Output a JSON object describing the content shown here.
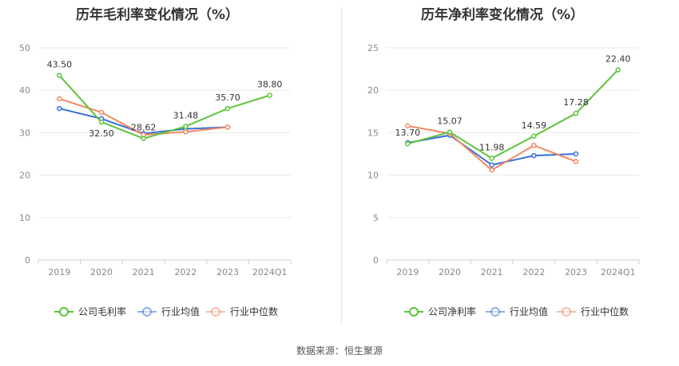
{
  "source_text": "数据来源：恒生聚源",
  "chart_data": [
    {
      "type": "line",
      "title": "历年毛利率变化情况（%）",
      "categories": [
        "2019",
        "2020",
        "2021",
        "2022",
        "2023",
        "2024Q1"
      ],
      "ylim": [
        0,
        50
      ],
      "yticks": [
        0,
        10,
        20,
        30,
        40,
        50
      ],
      "grid": true,
      "legend_position": "bottom",
      "series": [
        {
          "name": "公司毛利率",
          "color": "#5cc43c",
          "values": [
            43.5,
            32.5,
            28.62,
            31.48,
            35.7,
            38.8
          ],
          "labels": [
            "43.50",
            "32.50",
            "28.62",
            "31.48",
            "35.70",
            "38.80"
          ]
        },
        {
          "name": "行业均值",
          "color": "#3a6fd8",
          "values": [
            35.7,
            33.3,
            29.8,
            30.9,
            31.3,
            null
          ]
        },
        {
          "name": "行业中位数",
          "color": "#f08a64",
          "values": [
            38.0,
            34.8,
            29.5,
            30.2,
            31.3,
            null
          ]
        }
      ]
    },
    {
      "type": "line",
      "title": "历年净利率变化情况（%）",
      "categories": [
        "2019",
        "2020",
        "2021",
        "2022",
        "2023",
        "2024Q1"
      ],
      "ylim": [
        0,
        25
      ],
      "yticks": [
        0,
        5,
        10,
        15,
        20,
        25
      ],
      "grid": true,
      "legend_position": "bottom",
      "series": [
        {
          "name": "公司净利率",
          "color": "#5cc43c",
          "values": [
            13.7,
            15.07,
            11.98,
            14.59,
            17.28,
            22.4
          ],
          "labels": [
            "13.70",
            "15.07",
            "11.98",
            "14.59",
            "17.28",
            "22.40"
          ]
        },
        {
          "name": "行业均值",
          "color": "#3a6fd8",
          "values": [
            13.8,
            14.7,
            11.2,
            12.3,
            12.5,
            null
          ]
        },
        {
          "name": "行业中位数",
          "color": "#f08a64",
          "values": [
            15.8,
            14.9,
            10.6,
            13.5,
            11.6,
            null
          ]
        }
      ]
    }
  ]
}
